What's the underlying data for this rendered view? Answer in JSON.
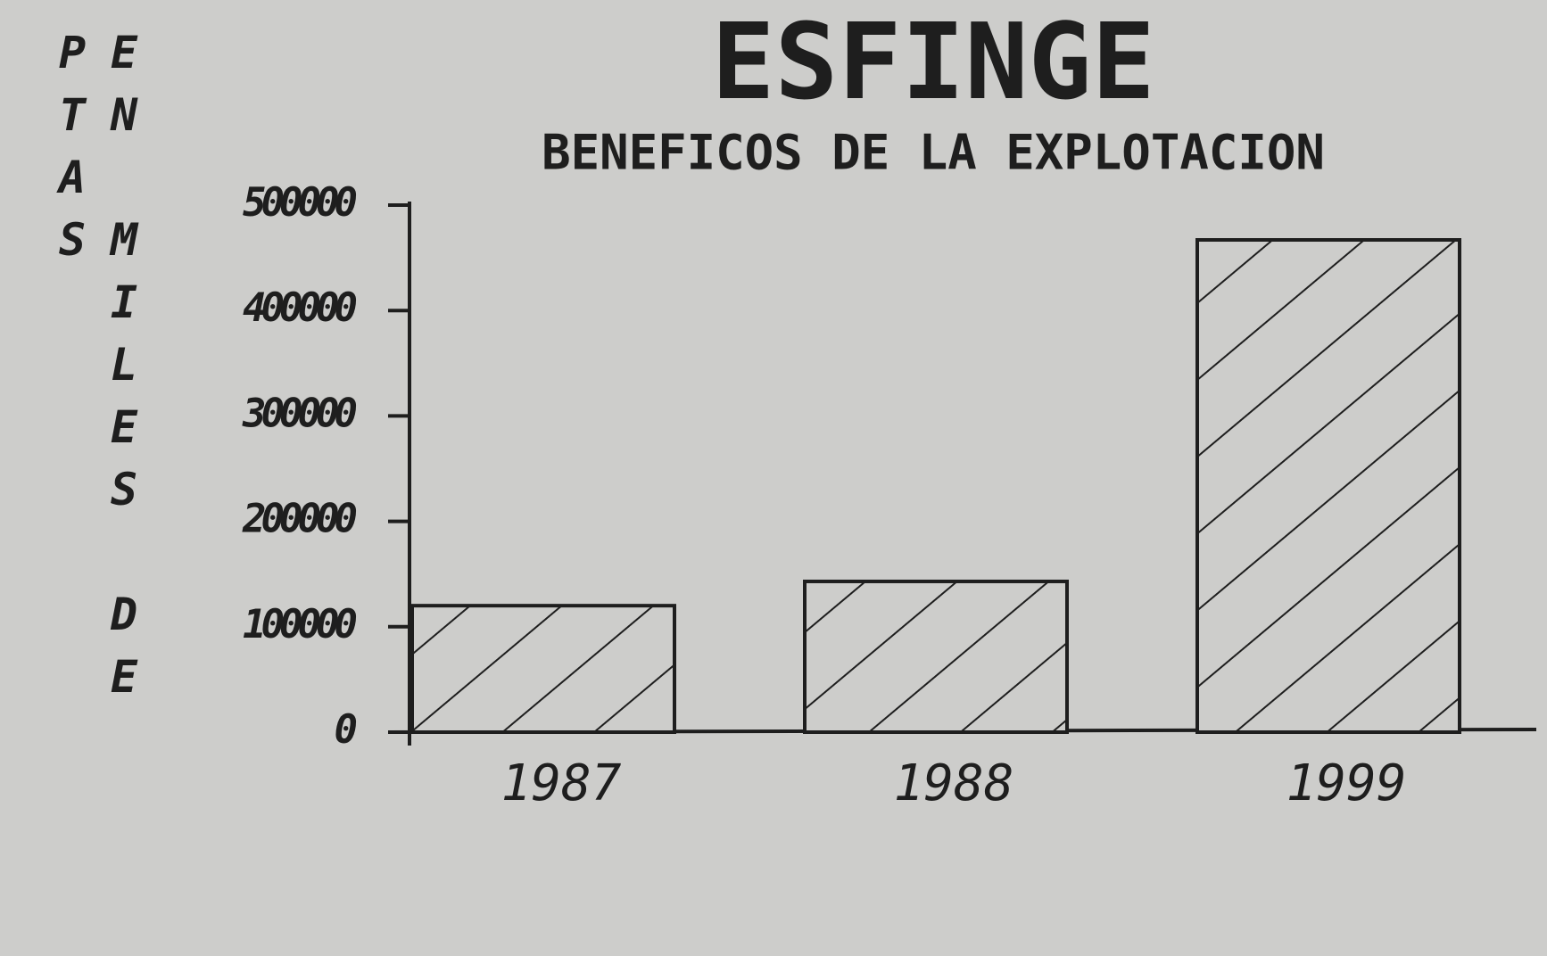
{
  "chart_data": {
    "type": "bar",
    "title": "ESFINGE",
    "subtitle": "BENEFICOS DE LA EXPLOTACION",
    "y_label": "EN MILES DE PTAS",
    "categories": [
      "1987",
      "1988",
      "1999"
    ],
    "values": [
      120000,
      143000,
      467000
    ],
    "color": "#1e1e1e",
    "ylim": [
      0,
      500000
    ],
    "yticks": [
      0,
      100000,
      200000,
      300000,
      400000,
      500000
    ],
    "grid": false
  }
}
